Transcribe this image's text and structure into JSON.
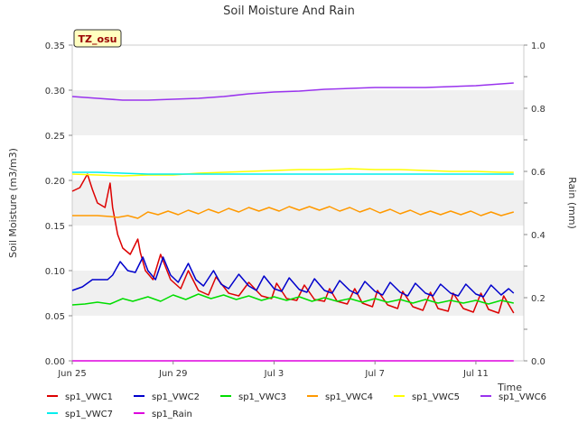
{
  "chart_data": {
    "type": "line",
    "title": "Soil Moisture And Rain",
    "xlabel": "Time",
    "ylabel": "Soil Moisture (m3/m3)",
    "y2label": "Rain (mm)",
    "site_badge": "TZ_osu",
    "x_ticks": [
      "Jun 25",
      "Jun 29",
      "Jul 3",
      "Jul 7",
      "Jul 11"
    ],
    "x_tick_days": [
      0,
      4,
      8,
      12,
      16
    ],
    "x_range_days": [
      0,
      17.9
    ],
    "ylim": [
      0,
      0.35
    ],
    "y_ticks": [
      "0.00",
      "0.05",
      "0.10",
      "0.15",
      "0.20",
      "0.25",
      "0.30",
      "0.35"
    ],
    "y_tick_values": [
      0,
      0.05,
      0.1,
      0.15,
      0.2,
      0.25,
      0.3,
      0.35
    ],
    "y2lim": [
      0,
      1.0
    ],
    "y2_ticks": [
      "0.0",
      "0.2",
      "0.4",
      "0.6",
      "0.8",
      "1.0"
    ],
    "y2_tick_values": [
      0,
      0.2,
      0.4,
      0.6,
      0.8,
      1.0
    ],
    "grid": "horizontal bands",
    "legend_position": "bottom",
    "series": [
      {
        "name": "sp1_VWC1",
        "color": "#dd0000",
        "axis": "left",
        "x": [
          0.0,
          0.3,
          0.6,
          0.8,
          1.0,
          1.3,
          1.5,
          1.6,
          1.8,
          2.0,
          2.3,
          2.6,
          2.7,
          2.9,
          3.2,
          3.5,
          3.9,
          4.3,
          4.6,
          5.0,
          5.4,
          5.7,
          6.2,
          6.6,
          7.0,
          7.5,
          7.9,
          8.1,
          8.5,
          8.9,
          9.2,
          9.6,
          10.0,
          10.2,
          10.5,
          10.9,
          11.2,
          11.5,
          11.9,
          12.1,
          12.5,
          12.9,
          13.1,
          13.5,
          13.9,
          14.2,
          14.5,
          14.9,
          15.1,
          15.5,
          15.9,
          16.2,
          16.5,
          16.9,
          17.1,
          17.5
        ],
        "y": [
          0.188,
          0.192,
          0.207,
          0.19,
          0.175,
          0.17,
          0.197,
          0.17,
          0.14,
          0.125,
          0.118,
          0.135,
          0.12,
          0.1,
          0.09,
          0.118,
          0.09,
          0.08,
          0.1,
          0.078,
          0.073,
          0.093,
          0.075,
          0.072,
          0.087,
          0.072,
          0.069,
          0.086,
          0.069,
          0.067,
          0.084,
          0.068,
          0.066,
          0.08,
          0.066,
          0.063,
          0.08,
          0.064,
          0.06,
          0.078,
          0.062,
          0.058,
          0.077,
          0.06,
          0.056,
          0.076,
          0.058,
          0.055,
          0.075,
          0.058,
          0.054,
          0.075,
          0.057,
          0.053,
          0.072,
          0.053
        ]
      },
      {
        "name": "sp1_VWC2",
        "color": "#0000cc",
        "axis": "left",
        "x": [
          0.0,
          0.4,
          0.8,
          1.0,
          1.4,
          1.6,
          1.9,
          2.2,
          2.5,
          2.8,
          3.0,
          3.3,
          3.6,
          3.9,
          4.2,
          4.6,
          4.9,
          5.2,
          5.6,
          5.9,
          6.2,
          6.6,
          7.0,
          7.3,
          7.6,
          8.0,
          8.3,
          8.6,
          9.0,
          9.3,
          9.6,
          10.0,
          10.3,
          10.6,
          11.0,
          11.3,
          11.6,
          12.0,
          12.3,
          12.6,
          13.0,
          13.3,
          13.6,
          14.0,
          14.3,
          14.6,
          15.0,
          15.3,
          15.6,
          16.0,
          16.3,
          16.6,
          17.0,
          17.3,
          17.5
        ],
        "y": [
          0.078,
          0.082,
          0.09,
          0.09,
          0.09,
          0.095,
          0.11,
          0.1,
          0.098,
          0.115,
          0.1,
          0.09,
          0.115,
          0.095,
          0.087,
          0.108,
          0.09,
          0.083,
          0.1,
          0.085,
          0.08,
          0.096,
          0.083,
          0.078,
          0.094,
          0.08,
          0.077,
          0.092,
          0.079,
          0.076,
          0.091,
          0.078,
          0.075,
          0.089,
          0.078,
          0.074,
          0.088,
          0.077,
          0.073,
          0.087,
          0.076,
          0.072,
          0.086,
          0.075,
          0.072,
          0.085,
          0.075,
          0.072,
          0.085,
          0.074,
          0.071,
          0.084,
          0.073,
          0.08,
          0.075
        ]
      },
      {
        "name": "sp1_VWC3",
        "color": "#00dd00",
        "axis": "left",
        "x": [
          0.0,
          0.5,
          1.0,
          1.5,
          2.0,
          2.4,
          3.0,
          3.5,
          4.0,
          4.5,
          5.0,
          5.5,
          6.0,
          6.5,
          7.0,
          7.5,
          8.0,
          8.5,
          9.0,
          9.5,
          10.0,
          10.5,
          11.0,
          11.5,
          12.0,
          12.5,
          13.0,
          13.5,
          14.0,
          14.5,
          15.0,
          15.5,
          16.0,
          16.5,
          17.0,
          17.5
        ],
        "y": [
          0.062,
          0.063,
          0.065,
          0.063,
          0.069,
          0.066,
          0.071,
          0.066,
          0.073,
          0.068,
          0.074,
          0.069,
          0.073,
          0.068,
          0.072,
          0.067,
          0.071,
          0.067,
          0.071,
          0.066,
          0.07,
          0.066,
          0.069,
          0.065,
          0.069,
          0.065,
          0.068,
          0.064,
          0.068,
          0.064,
          0.067,
          0.064,
          0.067,
          0.063,
          0.067,
          0.064
        ]
      },
      {
        "name": "sp1_VWC4",
        "color": "#ff9900",
        "axis": "left",
        "x": [
          0.0,
          0.5,
          1.0,
          1.5,
          1.8,
          2.2,
          2.6,
          3.0,
          3.4,
          3.8,
          4.2,
          4.6,
          5.0,
          5.4,
          5.8,
          6.2,
          6.6,
          7.0,
          7.4,
          7.8,
          8.2,
          8.6,
          9.0,
          9.4,
          9.8,
          10.2,
          10.6,
          11.0,
          11.4,
          11.8,
          12.2,
          12.6,
          13.0,
          13.4,
          13.8,
          14.2,
          14.6,
          15.0,
          15.4,
          15.8,
          16.2,
          16.6,
          17.0,
          17.5
        ],
        "y": [
          0.161,
          0.161,
          0.161,
          0.16,
          0.159,
          0.161,
          0.158,
          0.165,
          0.162,
          0.166,
          0.162,
          0.167,
          0.163,
          0.168,
          0.164,
          0.169,
          0.165,
          0.17,
          0.166,
          0.17,
          0.166,
          0.171,
          0.167,
          0.171,
          0.167,
          0.171,
          0.166,
          0.17,
          0.165,
          0.169,
          0.164,
          0.168,
          0.163,
          0.167,
          0.162,
          0.166,
          0.162,
          0.166,
          0.162,
          0.166,
          0.161,
          0.165,
          0.161,
          0.165
        ]
      },
      {
        "name": "sp1_VWC5",
        "color": "#ffff00",
        "axis": "left",
        "x": [
          0.0,
          1.0,
          2.0,
          3.0,
          4.0,
          5.0,
          6.0,
          7.0,
          8.0,
          9.0,
          10.0,
          11.0,
          12.0,
          13.0,
          14.0,
          15.0,
          16.0,
          17.0,
          17.5
        ],
        "y": [
          0.207,
          0.206,
          0.205,
          0.206,
          0.206,
          0.208,
          0.209,
          0.21,
          0.211,
          0.212,
          0.212,
          0.213,
          0.212,
          0.212,
          0.211,
          0.21,
          0.21,
          0.209,
          0.209
        ]
      },
      {
        "name": "sp1_VWC6",
        "color": "#9933ee",
        "axis": "left",
        "x": [
          0.0,
          1.0,
          2.0,
          3.0,
          4.0,
          5.0,
          6.0,
          7.0,
          8.0,
          9.0,
          10.0,
          11.0,
          12.0,
          13.0,
          14.0,
          15.0,
          16.0,
          17.0,
          17.5
        ],
        "y": [
          0.293,
          0.291,
          0.289,
          0.289,
          0.29,
          0.291,
          0.293,
          0.296,
          0.298,
          0.299,
          0.301,
          0.302,
          0.303,
          0.303,
          0.303,
          0.304,
          0.305,
          0.307,
          0.308
        ]
      },
      {
        "name": "sp1_VWC7",
        "color": "#00eeee",
        "axis": "left",
        "x": [
          0.0,
          1.0,
          2.0,
          3.0,
          4.0,
          5.0,
          6.0,
          7.0,
          8.0,
          9.0,
          10.0,
          11.0,
          12.0,
          13.0,
          14.0,
          15.0,
          16.0,
          17.0,
          17.5
        ],
        "y": [
          0.209,
          0.209,
          0.208,
          0.207,
          0.207,
          0.207,
          0.207,
          0.207,
          0.207,
          0.207,
          0.207,
          0.207,
          0.207,
          0.207,
          0.207,
          0.207,
          0.207,
          0.207,
          0.207
        ]
      },
      {
        "name": "sp1_Rain",
        "color": "#dd00dd",
        "axis": "right",
        "x": [
          0.0,
          17.5
        ],
        "y": [
          0.0,
          0.0
        ]
      }
    ]
  }
}
